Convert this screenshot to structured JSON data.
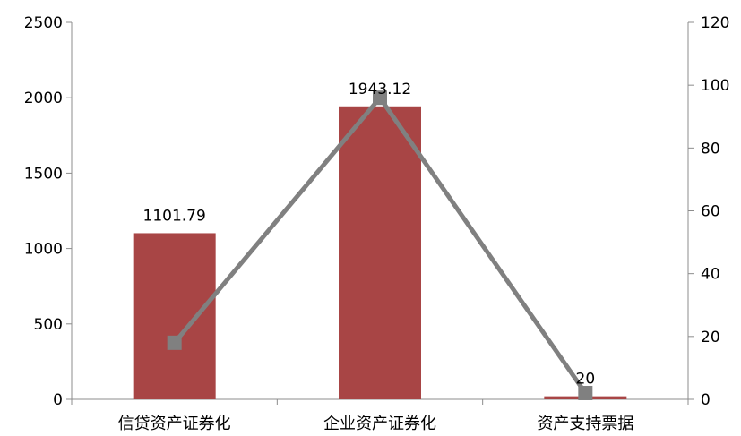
{
  "chart_data": {
    "type": "bar",
    "title": "",
    "xlabel": "",
    "ylabel": "",
    "categories": [
      "信贷资产证券化",
      "企业资产证券化",
      "资产支持票据"
    ],
    "grid": false,
    "legend": "none",
    "series": [
      {
        "kind": "bar",
        "axis": "left",
        "values": [
          1101.79,
          1943.12,
          20
        ],
        "data_labels": [
          "1101.79",
          "1943.12",
          "20"
        ],
        "color": "#a84545"
      },
      {
        "kind": "line",
        "axis": "right",
        "values": [
          18,
          96,
          2
        ],
        "color": "#808080"
      }
    ],
    "y_left": {
      "range": [
        0,
        2500
      ],
      "ticks": [
        0,
        500,
        1000,
        1500,
        2000,
        2500
      ]
    },
    "y_right": {
      "range": [
        0,
        120
      ],
      "ticks": [
        0,
        20,
        40,
        60,
        80,
        100,
        120
      ]
    }
  }
}
